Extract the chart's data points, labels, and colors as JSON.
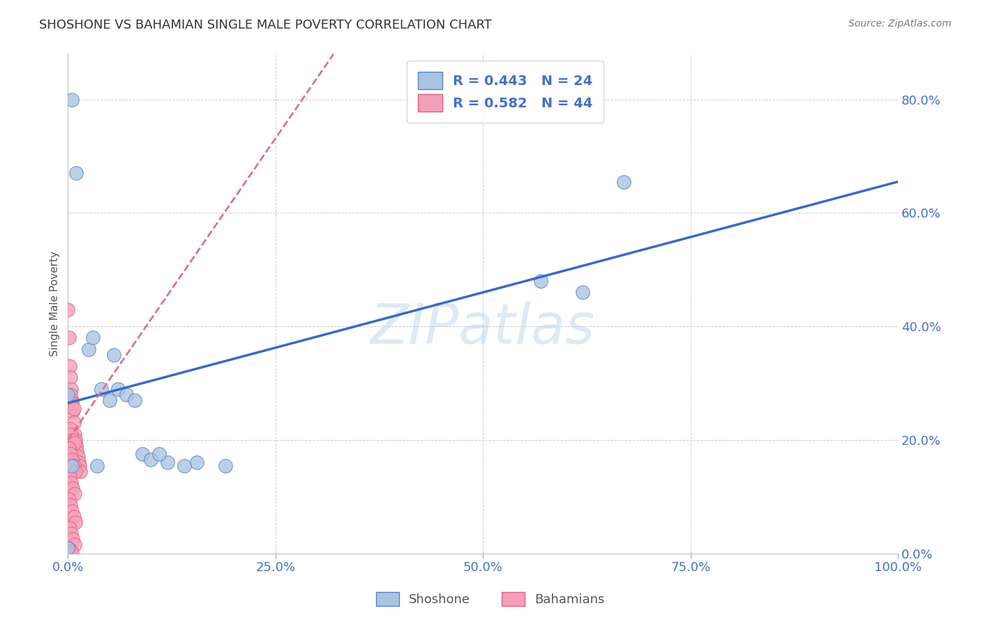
{
  "title": "SHOSHONE VS BAHAMIAN SINGLE MALE POVERTY CORRELATION CHART",
  "source_text": "Source: ZipAtlas.com",
  "ylabel": "Single Male Poverty",
  "xlim": [
    0.0,
    1.0
  ],
  "ylim": [
    0.0,
    0.88
  ],
  "shoshone_color": "#aac4e0",
  "bahamian_color": "#f4a0b8",
  "shoshone_edge_color": "#5585c5",
  "bahamian_edge_color": "#e06080",
  "shoshone_line_color": "#3a6abf",
  "bahamian_line_color": "#e07090",
  "R_shoshone": 0.443,
  "N_shoshone": 24,
  "R_bahamian": 0.582,
  "N_bahamian": 44,
  "watermark": "ZIPatlas",
  "shoshone_x": [
    0.005,
    0.01,
    0.025,
    0.03,
    0.04,
    0.05,
    0.06,
    0.055,
    0.07,
    0.09,
    0.1,
    0.12,
    0.155,
    0.19,
    0.57,
    0.62,
    0.67,
    0.0,
    0.035,
    0.08,
    0.11,
    0.14,
    0.0,
    0.005
  ],
  "shoshone_y": [
    0.8,
    0.67,
    0.36,
    0.38,
    0.29,
    0.27,
    0.29,
    0.35,
    0.28,
    0.175,
    0.165,
    0.16,
    0.16,
    0.155,
    0.48,
    0.46,
    0.655,
    0.28,
    0.155,
    0.27,
    0.175,
    0.155,
    0.01,
    0.155
  ],
  "bahamian_x": [
    0.0,
    0.001,
    0.002,
    0.003,
    0.004,
    0.005,
    0.006,
    0.007,
    0.008,
    0.009,
    0.01,
    0.011,
    0.012,
    0.013,
    0.014,
    0.015,
    0.003,
    0.005,
    0.007,
    0.002,
    0.004,
    0.006,
    0.008,
    0.001,
    0.003,
    0.005,
    0.007,
    0.009,
    0.002,
    0.004,
    0.006,
    0.008,
    0.001,
    0.003,
    0.005,
    0.007,
    0.009,
    0.002,
    0.004,
    0.006,
    0.008,
    0.001,
    0.003,
    0.005
  ],
  "bahamian_y": [
    0.43,
    0.38,
    0.33,
    0.31,
    0.29,
    0.27,
    0.25,
    0.23,
    0.21,
    0.2,
    0.19,
    0.18,
    0.17,
    0.16,
    0.155,
    0.145,
    0.28,
    0.265,
    0.255,
    0.22,
    0.21,
    0.2,
    0.195,
    0.185,
    0.175,
    0.165,
    0.155,
    0.145,
    0.135,
    0.125,
    0.115,
    0.105,
    0.095,
    0.085,
    0.075,
    0.065,
    0.055,
    0.045,
    0.035,
    0.025,
    0.015,
    0.008,
    0.005,
    0.002
  ],
  "shoshone_trend_x": [
    0.0,
    1.0
  ],
  "shoshone_trend_y": [
    0.265,
    0.655
  ],
  "bahamian_trend_x": [
    0.0,
    0.32
  ],
  "bahamian_trend_y": [
    0.2,
    0.88
  ]
}
